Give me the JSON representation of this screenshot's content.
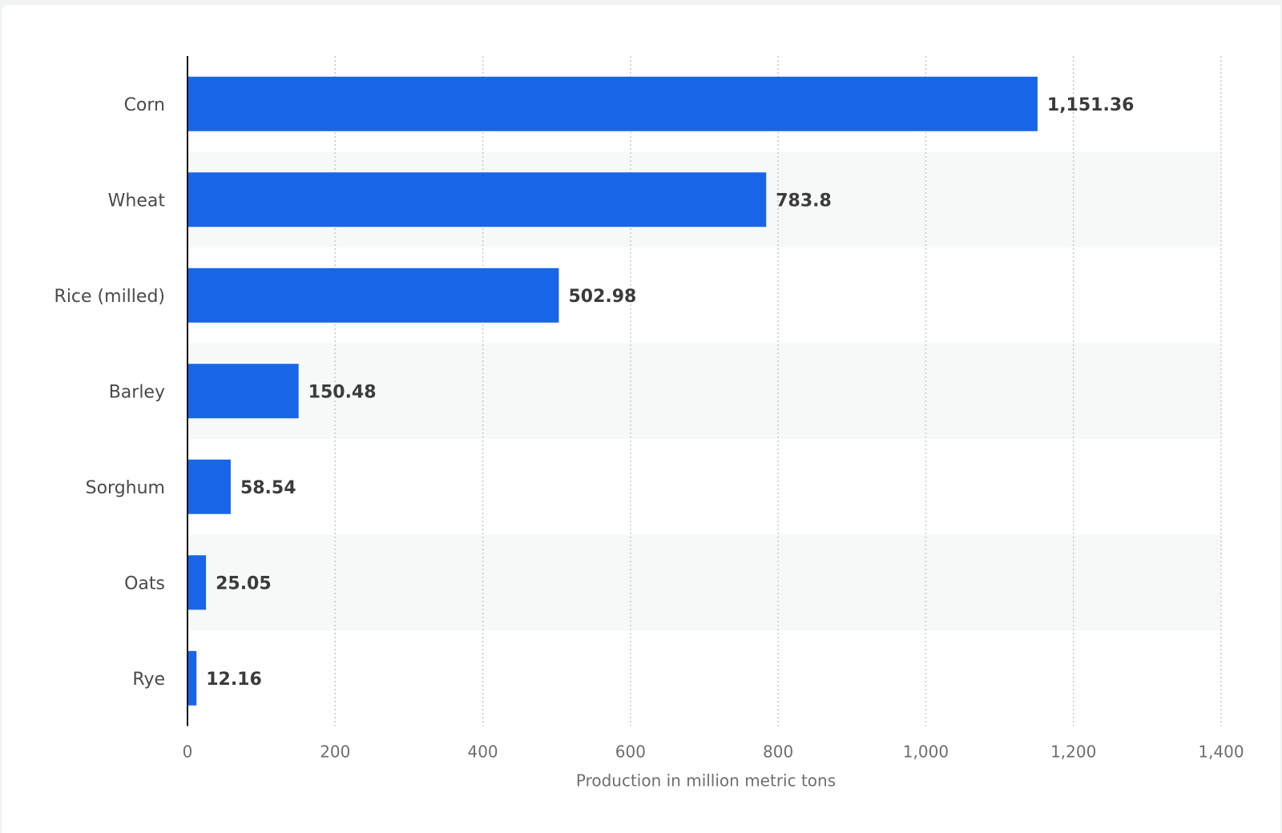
{
  "chart_data": {
    "type": "bar",
    "orientation": "horizontal",
    "categories": [
      "Corn",
      "Wheat",
      "Rice (milled)",
      "Barley",
      "Sorghum",
      "Oats",
      "Rye"
    ],
    "values": [
      1151.36,
      783.8,
      502.98,
      150.48,
      58.54,
      25.05,
      12.16
    ],
    "value_labels": [
      "1,151.36",
      "783.8",
      "502.98",
      "150.48",
      "58.54",
      "25.05",
      "12.16"
    ],
    "xlabel": "Production in million metric tons",
    "ylabel": "",
    "xlim": [
      0,
      1400
    ],
    "xticks": [
      0,
      200,
      400,
      600,
      800,
      1000,
      1200,
      1400
    ],
    "xtick_labels": [
      "0",
      "200",
      "400",
      "600",
      "800",
      "1,000",
      "1,200",
      "1,400"
    ],
    "grid": true,
    "grid_style": "dotted vertical",
    "alternating_row_bands": true,
    "legend": "none"
  },
  "colors": {
    "bar": "#1865e8",
    "band": "#f7f8f8",
    "grid": "#c8c8c8",
    "axis": "#111111",
    "background": "#ffffff"
  }
}
